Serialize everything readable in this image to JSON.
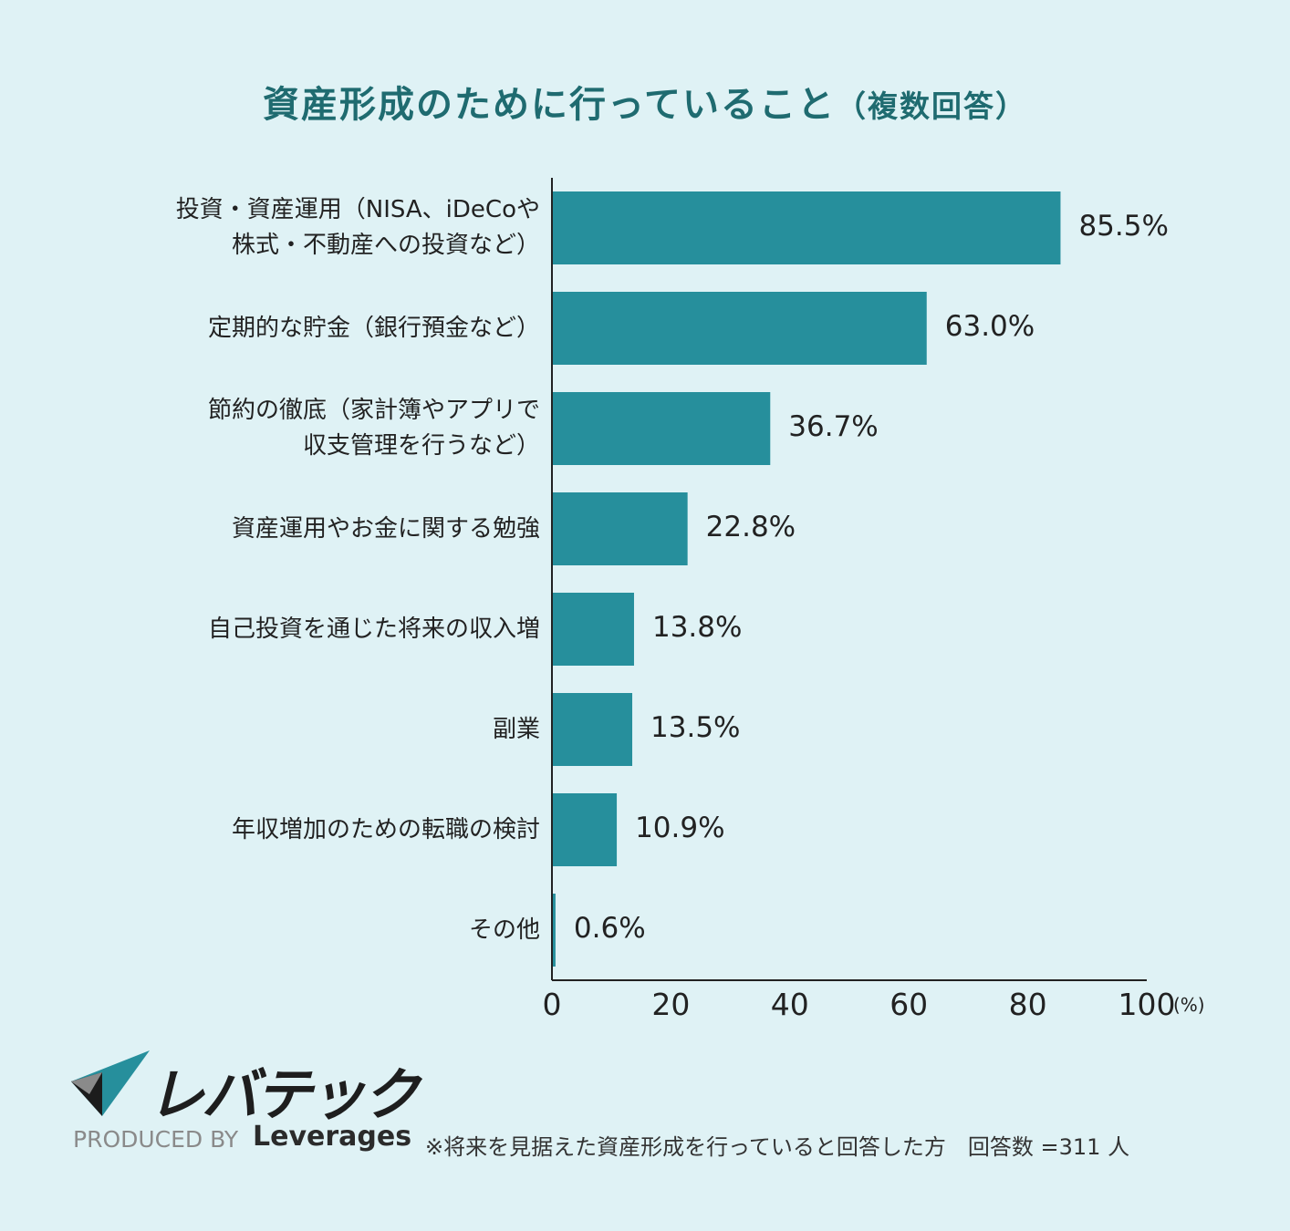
{
  "title": {
    "main": "資産形成のために行っていること",
    "sub": "（複数回答）"
  },
  "chart_data": {
    "type": "bar",
    "orientation": "horizontal",
    "title": "資産形成のために行っていること（複数回答）",
    "categories": [
      "投資・資産運用（NISA、iDeCoや\n株式・不動産への投資など）",
      "定期的な貯金（銀行預金など）",
      "節約の徹底（家計簿やアプリで\n収支管理を行うなど）",
      "資産運用やお金に関する勉強",
      "自己投資を通じた将来の収入増",
      "副業",
      "年収増加のための転職の検討",
      "その他"
    ],
    "values": [
      85.5,
      63.0,
      36.7,
      22.8,
      13.8,
      13.5,
      10.9,
      0.6
    ],
    "value_labels": [
      "85.5%",
      "63.0%",
      "36.7%",
      "22.8%",
      "13.8%",
      "13.5%",
      "10.9%",
      "0.6%"
    ],
    "xlim": [
      0,
      100
    ],
    "xticks": [
      "0",
      "20",
      "40",
      "60",
      "80",
      "100"
    ],
    "x_unit": "(%)",
    "grid": false,
    "bar_color": "#268f9c"
  },
  "branding": {
    "logo_text": "レバテック",
    "produced_by": "PRODUCED BY",
    "company": "Leverages"
  },
  "footnote": "※将来を見据えた資産形成を行っていると回答した方　回答数 =311 人"
}
